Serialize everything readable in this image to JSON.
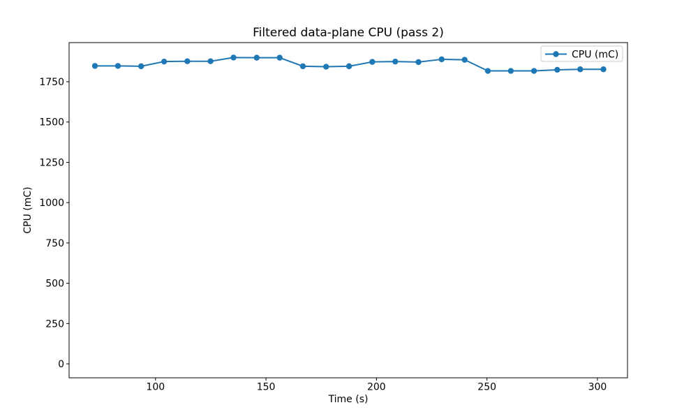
{
  "figure": {
    "background": "#ffffff",
    "spine_color": "#000000"
  },
  "chart_data": {
    "type": "line",
    "title": "Filtered data-plane CPU (pass 2)",
    "xlabel": "Time (s)",
    "ylabel": "CPU (mC)",
    "xlim": [
      60.9,
      313.6
    ],
    "ylim": [
      -86.6,
      1992.7
    ],
    "xticks": [
      100,
      150,
      200,
      250,
      300
    ],
    "yticks": [
      0,
      250,
      500,
      750,
      1000,
      1250,
      1500,
      1750
    ],
    "grid": false,
    "legend": {
      "position": "upper right"
    },
    "series": [
      {
        "name": "CPU (mC)",
        "color": "#1f77b4",
        "marker": "o",
        "x": [
          72.6,
          83.0,
          93.5,
          103.9,
          114.4,
          124.9,
          135.3,
          145.8,
          156.2,
          166.7,
          177.2,
          187.6,
          198.1,
          208.5,
          219.0,
          229.5,
          239.9,
          250.4,
          260.8,
          271.3,
          281.8,
          292.2,
          302.7
        ],
        "y": [
          1848,
          1848,
          1846,
          1875,
          1877,
          1877,
          1900,
          1899,
          1899,
          1846,
          1843,
          1846,
          1873,
          1875,
          1872,
          1889,
          1886,
          1817,
          1817,
          1817,
          1824,
          1827,
          1827
        ]
      }
    ]
  }
}
